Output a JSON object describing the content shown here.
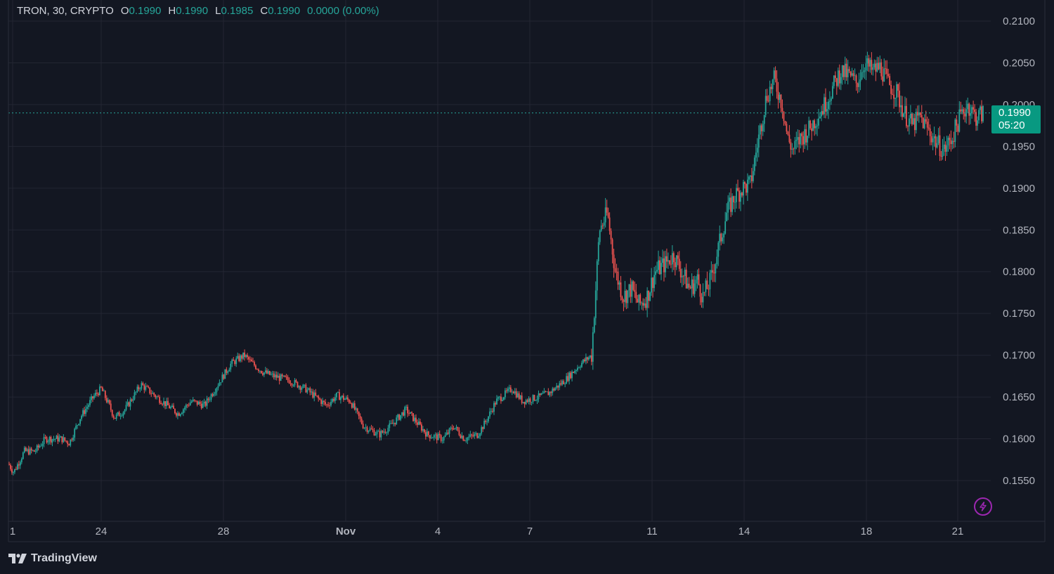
{
  "legend": {
    "symbol": "TRON, 30, CRYPTO",
    "open_label": "O",
    "open": "0.1990",
    "high_label": "H",
    "high": "0.1990",
    "low_label": "L",
    "low": "0.1985",
    "close_label": "C",
    "close": "0.1990",
    "change": "0.0000 (0.00%)"
  },
  "price_tag": {
    "price": "0.1990",
    "countdown": "05:20"
  },
  "brand": {
    "name": "TradingView"
  },
  "colors": {
    "background": "#131722",
    "grid": "#232632",
    "up": "#26a69a",
    "down": "#ef5350",
    "text": "#b2b5be",
    "price_line": "#26a69a",
    "price_tag_bg": "#089981",
    "bolt": "#9c27b0"
  },
  "icons": {
    "brand": "tradingview-logo-icon",
    "bolt": "lightning-bolt-icon"
  },
  "chart_data": {
    "type": "candlestick",
    "series_name": "TRON, 30, CRYPTO",
    "x_tick_labels": [
      "1",
      "24",
      "28",
      "Nov",
      "4",
      "7",
      "11",
      "14",
      "18",
      "21"
    ],
    "y_tick_labels": [
      "0.2100",
      "0.2050",
      "0.2000",
      "0.1950",
      "0.1900",
      "0.1850",
      "0.1800",
      "0.1750",
      "0.1700",
      "0.1650",
      "0.1600",
      "0.1550"
    ],
    "ylim": [
      0.1515,
      0.2115
    ],
    "last_price": 0.199,
    "grid": true,
    "approx_close_path": [
      [
        0.0,
        0.157
      ],
      [
        0.01,
        0.156
      ],
      [
        0.03,
        0.1585
      ],
      [
        0.05,
        0.1585
      ],
      [
        0.07,
        0.16
      ],
      [
        0.1,
        0.16
      ],
      [
        0.115,
        0.1595
      ],
      [
        0.135,
        0.1625
      ],
      [
        0.16,
        0.165
      ],
      [
        0.175,
        0.166
      ],
      [
        0.19,
        0.164
      ],
      [
        0.2,
        0.1625
      ],
      [
        0.22,
        0.1635
      ],
      [
        0.25,
        0.1665
      ],
      [
        0.28,
        0.165
      ],
      [
        0.3,
        0.164
      ],
      [
        0.32,
        0.163
      ],
      [
        0.345,
        0.1645
      ],
      [
        0.37,
        0.164
      ],
      [
        0.39,
        0.166
      ],
      [
        0.42,
        0.169
      ],
      [
        0.445,
        0.17
      ],
      [
        0.46,
        0.169
      ],
      [
        0.48,
        0.168
      ],
      [
        0.5,
        0.1675
      ],
      [
        0.53,
        0.167
      ],
      [
        0.56,
        0.166
      ],
      [
        0.58,
        0.165
      ],
      [
        0.6,
        0.164
      ],
      [
        0.62,
        0.1652
      ],
      [
        0.645,
        0.1645
      ],
      [
        0.67,
        0.1615
      ],
      [
        0.7,
        0.1605
      ],
      [
        0.72,
        0.1615
      ],
      [
        0.75,
        0.1635
      ],
      [
        0.77,
        0.162
      ],
      [
        0.79,
        0.1605
      ],
      [
        0.82,
        0.16
      ],
      [
        0.84,
        0.1615
      ],
      [
        0.86,
        0.16
      ],
      [
        0.885,
        0.1605
      ],
      [
        0.9,
        0.162
      ],
      [
        0.92,
        0.1645
      ],
      [
        0.95,
        0.166
      ],
      [
        0.97,
        0.1645
      ],
      [
        1.0,
        0.165
      ],
      [
        1.02,
        0.1655
      ],
      [
        1.05,
        0.167
      ],
      [
        1.08,
        0.169
      ],
      [
        1.1,
        0.17
      ],
      [
        1.115,
        0.185
      ],
      [
        1.13,
        0.187
      ],
      [
        1.145,
        0.18
      ],
      [
        1.16,
        0.177
      ],
      [
        1.175,
        0.178
      ],
      [
        1.19,
        0.176
      ],
      [
        1.205,
        0.177
      ],
      [
        1.22,
        0.18
      ],
      [
        1.24,
        0.181
      ],
      [
        1.255,
        0.182
      ],
      [
        1.27,
        0.18
      ],
      [
        1.285,
        0.178
      ],
      [
        1.3,
        0.179
      ],
      [
        1.31,
        0.177
      ],
      [
        1.325,
        0.179
      ],
      [
        1.34,
        0.183
      ],
      [
        1.355,
        0.187
      ],
      [
        1.37,
        0.189
      ],
      [
        1.385,
        0.19
      ],
      [
        1.4,
        0.1905
      ],
      [
        1.415,
        0.196
      ],
      [
        1.43,
        0.201
      ],
      [
        1.445,
        0.203
      ],
      [
        1.46,
        0.2
      ],
      [
        1.47,
        0.196
      ],
      [
        1.48,
        0.1945
      ],
      [
        1.495,
        0.196
      ],
      [
        1.51,
        0.197
      ],
      [
        1.525,
        0.1985
      ],
      [
        1.54,
        0.2
      ],
      [
        1.555,
        0.202
      ],
      [
        1.57,
        0.204
      ],
      [
        1.585,
        0.2035
      ],
      [
        1.6,
        0.2025
      ],
      [
        1.615,
        0.205
      ],
      [
        1.63,
        0.204
      ],
      [
        1.645,
        0.2045
      ],
      [
        1.66,
        0.2025
      ],
      [
        1.675,
        0.2015
      ],
      [
        1.69,
        0.199
      ],
      [
        1.705,
        0.1975
      ],
      [
        1.72,
        0.1985
      ],
      [
        1.735,
        0.197
      ],
      [
        1.75,
        0.1955
      ],
      [
        1.765,
        0.1945
      ],
      [
        1.78,
        0.196
      ],
      [
        1.795,
        0.1985
      ],
      [
        1.81,
        0.2
      ],
      [
        1.825,
        0.1985
      ],
      [
        1.84,
        0.199
      ]
    ]
  }
}
